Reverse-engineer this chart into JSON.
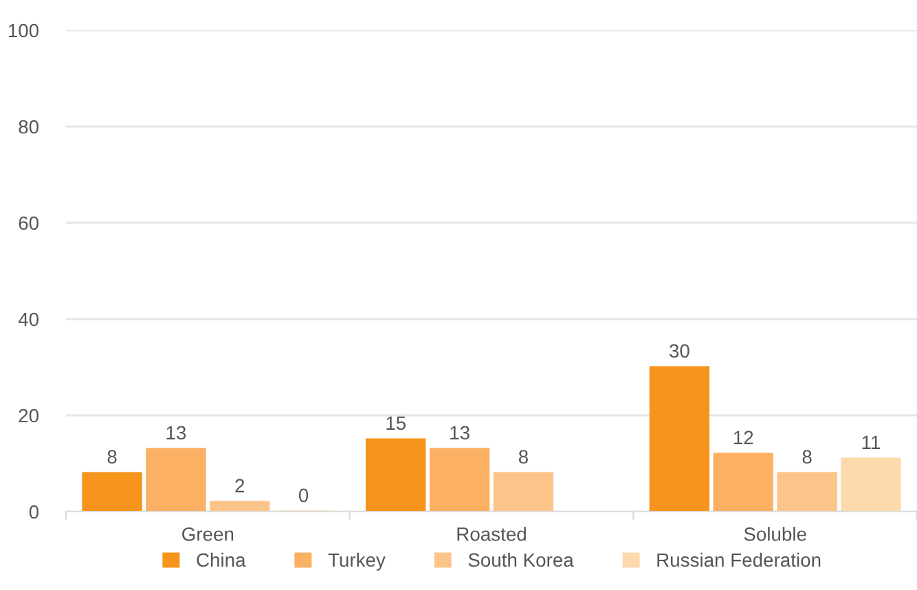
{
  "chart_data": {
    "type": "bar",
    "categories": [
      "Green",
      "Roasted",
      "Soluble"
    ],
    "series": [
      {
        "name": "China",
        "color": "#f7941d",
        "values": [
          8,
          15,
          30
        ]
      },
      {
        "name": "Turkey",
        "color": "#fbb064",
        "values": [
          13,
          13,
          12
        ]
      },
      {
        "name": "South Korea",
        "color": "#fcc488",
        "values": [
          2,
          8,
          8
        ]
      },
      {
        "name": "Russian Federation",
        "color": "#fdd9ac",
        "values": [
          0,
          null,
          11
        ]
      }
    ],
    "ylim": [
      0,
      100
    ],
    "yticks": [
      0,
      20,
      40,
      60,
      80,
      100
    ],
    "grid": "y",
    "legend": "bottom",
    "data_labels": true
  }
}
